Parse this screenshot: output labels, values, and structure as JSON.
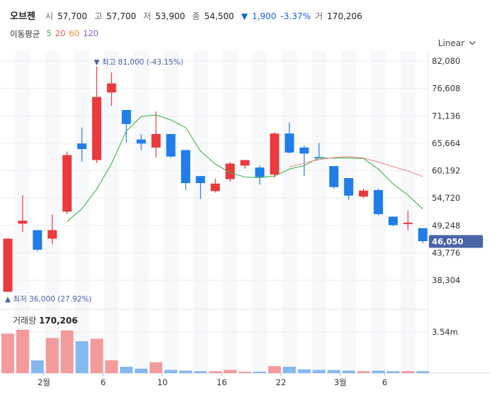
{
  "header": {
    "name": "오브젠",
    "open_label": "시",
    "open": "57,700",
    "high_label": "고",
    "high": "57,700",
    "low_label": "저",
    "low": "53,900",
    "close_label": "종",
    "close": "54,500",
    "change_arrow": "▼",
    "change": "1,900",
    "change_pct": "-3.37%",
    "volume_label": "거",
    "volume": "170,206"
  },
  "ma_legend": {
    "title": "이동평균",
    "items": [
      {
        "label": "5",
        "color": "#3fb54a"
      },
      {
        "label": "20",
        "color": "#f0504f"
      },
      {
        "label": "60",
        "color": "#f08a2a"
      },
      {
        "label": "120",
        "color": "#8a58c8"
      }
    ]
  },
  "scale_button": {
    "label": "Linear",
    "icon": "chevron-down-icon"
  },
  "annotations": {
    "max_text": "▼ 최고 81,000 (-43.15%)",
    "min_text": "▲ 최저 36,000 (27.92%)"
  },
  "current_price_tag": "46,050",
  "volume_panel": {
    "label": "거래량",
    "value": "170,206",
    "axis_tick": "3.54m"
  },
  "colors": {
    "up": "#ea3a3e",
    "down": "#1f7ee9",
    "vol_up": "#f39a9d",
    "vol_down": "#86b8f0",
    "ma5": "#3fb54a",
    "ma20": "#f08a8a",
    "tag": "#4a64a8"
  },
  "chart_data": {
    "type": "candlestick",
    "y_ticks": [
      "82,080",
      "76,608",
      "71,136",
      "65,664",
      "60,192",
      "54,720",
      "49,248",
      "43,776",
      "38,304"
    ],
    "y_tick_values": [
      82080,
      76608,
      71136,
      65664,
      60192,
      54720,
      49248,
      43776,
      38304
    ],
    "x_ticks": [
      {
        "label": "2월",
        "index": 1
      },
      {
        "label": "6",
        "index": 5
      },
      {
        "label": "10",
        "index": 9
      },
      {
        "label": "16",
        "index": 13
      },
      {
        "label": "22",
        "index": 17
      },
      {
        "label": "3월",
        "index": 21
      },
      {
        "label": "6",
        "index": 24
      }
    ],
    "candles": [
      {
        "o": 36000,
        "h": 46700,
        "l": 36000,
        "c": 46600,
        "v": 0.62
      },
      {
        "o": 49600,
        "h": 55300,
        "l": 47900,
        "c": 50200,
        "v": 0.68
      },
      {
        "o": 48300,
        "h": 48300,
        "l": 44100,
        "c": 44400,
        "v": 0.2
      },
      {
        "o": 46600,
        "h": 51400,
        "l": 45500,
        "c": 48300,
        "v": 0.55
      },
      {
        "o": 52000,
        "h": 64000,
        "l": 51500,
        "c": 63300,
        "v": 0.67
      },
      {
        "o": 65600,
        "h": 68800,
        "l": 62000,
        "c": 64500,
        "v": 0.5
      },
      {
        "o": 62300,
        "h": 81000,
        "l": 61700,
        "c": 74900,
        "v": 0.54
      },
      {
        "o": 75800,
        "h": 79800,
        "l": 73100,
        "c": 77600,
        "v": 0.2
      },
      {
        "o": 72300,
        "h": 72300,
        "l": 65800,
        "c": 69500,
        "v": 0.1
      },
      {
        "o": 66400,
        "h": 67500,
        "l": 64300,
        "c": 65600,
        "v": 0.07
      },
      {
        "o": 64800,
        "h": 72000,
        "l": 62800,
        "c": 67500,
        "v": 0.17
      },
      {
        "o": 67500,
        "h": 67500,
        "l": 62800,
        "c": 63000,
        "v": 0.05
      },
      {
        "o": 64300,
        "h": 64300,
        "l": 56300,
        "c": 57700,
        "v": 0.04
      },
      {
        "o": 59100,
        "h": 59100,
        "l": 54500,
        "c": 57700,
        "v": 0.03
      },
      {
        "o": 56100,
        "h": 58600,
        "l": 55800,
        "c": 57600,
        "v": 0.03
      },
      {
        "o": 58500,
        "h": 61900,
        "l": 58000,
        "c": 61600,
        "v": 0.05
      },
      {
        "o": 61200,
        "h": 62300,
        "l": 60600,
        "c": 62300,
        "v": 0.02
      },
      {
        "o": 60800,
        "h": 61200,
        "l": 57400,
        "c": 58900,
        "v": 0.02
      },
      {
        "o": 59400,
        "h": 67900,
        "l": 58800,
        "c": 67600,
        "v": 0.11
      },
      {
        "o": 67600,
        "h": 69800,
        "l": 63600,
        "c": 63800,
        "v": 0.1
      },
      {
        "o": 64800,
        "h": 65200,
        "l": 59100,
        "c": 63600,
        "v": 0.06
      },
      {
        "o": 62900,
        "h": 65700,
        "l": 62800,
        "c": 62800,
        "v": 0.05
      },
      {
        "o": 61100,
        "h": 61100,
        "l": 56600,
        "c": 56900,
        "v": 0.05
      },
      {
        "o": 58700,
        "h": 58700,
        "l": 54400,
        "c": 55200,
        "v": 0.04
      },
      {
        "o": 55000,
        "h": 56600,
        "l": 54700,
        "c": 56200,
        "v": 0.03
      },
      {
        "o": 56300,
        "h": 56600,
        "l": 51300,
        "c": 51500,
        "v": 0.04
      },
      {
        "o": 51000,
        "h": 51000,
        "l": 49100,
        "c": 49300,
        "v": 0.03
      },
      {
        "o": 49600,
        "h": 52200,
        "l": 48300,
        "c": 49800,
        "v": 0.03
      },
      {
        "o": 48700,
        "h": 48700,
        "l": 45700,
        "c": 46100,
        "v": 0.03
      }
    ],
    "ma5": [
      null,
      null,
      null,
      null,
      50000,
      52600,
      56500,
      61600,
      68100,
      71000,
      71300,
      70300,
      68800,
      64100,
      61500,
      59800,
      58900,
      58800,
      59100,
      60500,
      61200,
      62700,
      62700,
      62700,
      62600,
      60500,
      57500,
      55300,
      52500
    ],
    "ma20": [
      null,
      null,
      null,
      null,
      null,
      null,
      null,
      null,
      null,
      null,
      null,
      null,
      null,
      null,
      null,
      null,
      null,
      null,
      null,
      60900,
      61700,
      62400,
      62800,
      63000,
      62700,
      61900,
      61000,
      60100,
      59000
    ]
  }
}
